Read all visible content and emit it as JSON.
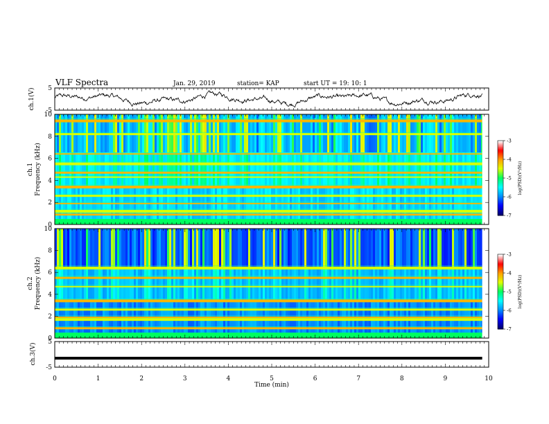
{
  "header": {
    "title": "VLF Spectra",
    "date": "Jan. 29, 2019",
    "station": "station= KAP",
    "start": "start  UT =   19: 10: 1"
  },
  "chart_data": [
    {
      "type": "line",
      "name": "ch1-waveform",
      "ylabel": "ch.1(V)",
      "ylim": [
        -5,
        5
      ],
      "yticks": [
        "5",
        "-5"
      ],
      "xlim": [
        0,
        10
      ],
      "x_end_min": 9.85
    },
    {
      "type": "heatmap",
      "name": "ch1-spectrogram",
      "ylabel_line1": "ch.1",
      "ylabel_line2": "Frequency (kHz)",
      "ylim": [
        0,
        10
      ],
      "yticks": [
        "0",
        "2",
        "4",
        "6",
        "8",
        "10"
      ],
      "colorbar": {
        "label": "log(PSD)(V²/Hz)",
        "range": [
          -7,
          -3
        ],
        "ticks": [
          "-3",
          "-4",
          "-5",
          "-6",
          "-7"
        ],
        "colors": [
          "#000070",
          "#0000ff",
          "#0090ff",
          "#00ffff",
          "#00ff60",
          "#e0ff00",
          "#ffa000",
          "#ff0000",
          "#ffffff"
        ]
      },
      "bands_khz": [
        0.3,
        0.9,
        1.2,
        1.9,
        2.6,
        3.4,
        4.3,
        4.7,
        5.5,
        6.4,
        8.2,
        9.4
      ]
    },
    {
      "type": "heatmap",
      "name": "ch2-spectrogram",
      "ylabel_line1": "ch.2",
      "ylabel_line2": "Frequency (kHz)",
      "ylim": [
        0,
        10
      ],
      "yticks": [
        "0",
        "2",
        "4",
        "6",
        "8",
        "10"
      ],
      "colorbar": {
        "label": "log(PSD)(V²/Hz)",
        "range": [
          -7,
          -3
        ],
        "ticks": [
          "-3",
          "-4",
          "-5",
          "-6",
          "-7"
        ],
        "colors": [
          "#000070",
          "#0000ff",
          "#0090ff",
          "#00ffff",
          "#00ff60",
          "#e0ff00",
          "#ffa000",
          "#ff0000",
          "#ffffff"
        ]
      },
      "bands_khz": [
        0.3,
        0.9,
        1.7,
        1.9,
        2.6,
        3.4,
        4.7,
        5.5,
        6.4
      ]
    },
    {
      "type": "line",
      "name": "ch3-waveform",
      "ylabel": "ch.3(V)",
      "ylim": [
        -5,
        5
      ],
      "yticks": [
        "5",
        "-5"
      ],
      "value": -1.5,
      "xlim": [
        0,
        10
      ],
      "x_end_min": 9.85,
      "xlabel": "Time  (min)",
      "xticks": [
        "0",
        "1",
        "2",
        "3",
        "4",
        "5",
        "6",
        "7",
        "8",
        "9",
        "10"
      ]
    }
  ]
}
